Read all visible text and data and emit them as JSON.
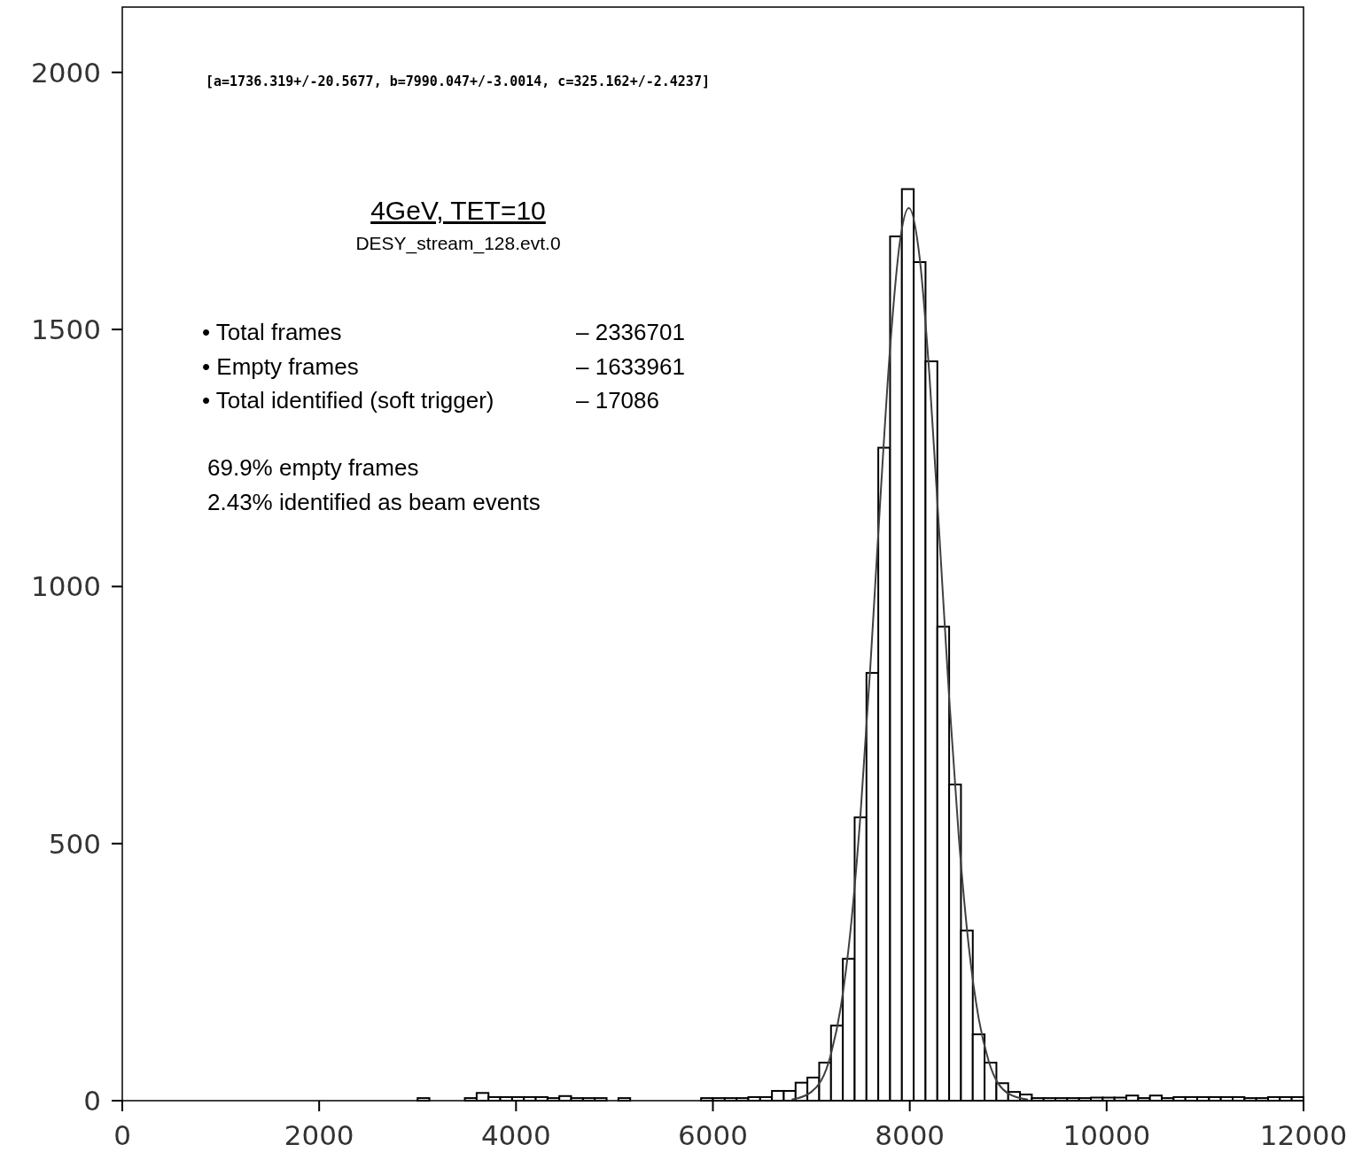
{
  "chart_data": {
    "type": "histogram",
    "title": "4GeV, TET=10",
    "subtitle": "DESY_stream_128.evt.0",
    "annotations": [
      "[a=1736.319+/-20.5677, b=7990.047+/-3.0014, c=325.162+/-2.4237]",
      "• Total frames\t– 2336701",
      "• Empty frames\t– 1633961",
      "• Total identified (soft trigger)\t– 17086",
      "69.9% empty frames",
      "2.43% identified as beam events"
    ],
    "bins": [
      0,
      120,
      240,
      360,
      480,
      600,
      720,
      840,
      960,
      1080,
      1200,
      1320,
      1440,
      1560,
      1680,
      1800,
      1920,
      2040,
      2160,
      2280,
      2400,
      2520,
      2640,
      2760,
      2880,
      3000,
      3120,
      3240,
      3360,
      3480,
      3600,
      3720,
      3840,
      3960,
      4080,
      4200,
      4320,
      4440,
      4560,
      4680,
      4800,
      4920,
      5040,
      5160,
      5280,
      5400,
      5520,
      5640,
      5760,
      5880,
      6000,
      6120,
      6240,
      6360,
      6480,
      6600,
      6720,
      6840,
      6960,
      7080,
      7200,
      7320,
      7440,
      7560,
      7680,
      7800,
      7920,
      8040,
      8160,
      8280,
      8400,
      8520,
      8640,
      8760,
      8880,
      9000,
      9120,
      9240,
      9360,
      9480,
      9600,
      9720,
      9840,
      9960,
      10080,
      10200,
      10320,
      10440,
      10560,
      10680,
      10800,
      10920,
      11040,
      11160,
      11280,
      11400,
      11520,
      11640,
      11760,
      11880,
      12000
    ],
    "series": [
      {
        "color": "#000000",
        "values": [
          0,
          0,
          0,
          0,
          0,
          0,
          0,
          0,
          0,
          0,
          0,
          0,
          0,
          0,
          0,
          0,
          0,
          0,
          0,
          0,
          0,
          0,
          0,
          0,
          0,
          5,
          0,
          0,
          0,
          5,
          15,
          7,
          7,
          7,
          7,
          7,
          5,
          9,
          5,
          5,
          5,
          0,
          5,
          0,
          0,
          0,
          0,
          0,
          0,
          5,
          5,
          5,
          5,
          7,
          7,
          19,
          19,
          35,
          45,
          74,
          146,
          276,
          551,
          832,
          1270,
          1681,
          1773,
          1631,
          1438,
          922,
          615,
          331,
          129,
          74,
          34,
          17,
          12,
          5,
          5,
          5,
          5,
          5,
          6,
          6,
          6,
          10,
          5,
          10,
          5,
          7,
          7,
          7,
          7,
          7,
          7,
          5,
          5,
          7,
          7,
          7
        ]
      },
      {
        "type": "line",
        "color": "#404040",
        "x": [
          6800,
          7000,
          7200,
          7300,
          7400,
          7500,
          7600,
          7700,
          7800,
          7900,
          7990,
          8100,
          8200,
          8300,
          8400,
          8500,
          8600,
          8700,
          8800,
          9000,
          9200
        ],
        "values": [
          2,
          17,
          91,
          183,
          335,
          558,
          846,
          1167,
          1464,
          1671,
          1736,
          1640,
          1410,
          1102,
          784,
          508,
          299,
          160,
          78,
          14,
          2
        ]
      }
    ],
    "xlim": [
      0,
      12000
    ],
    "ylim": [
      0,
      2127
    ],
    "xticks": [
      0,
      2000,
      4000,
      6000,
      8000,
      10000,
      12000
    ],
    "yticks": [
      0,
      500,
      1000,
      1500,
      2000
    ],
    "grid": false,
    "marker": "none",
    "line_style": "solid"
  }
}
